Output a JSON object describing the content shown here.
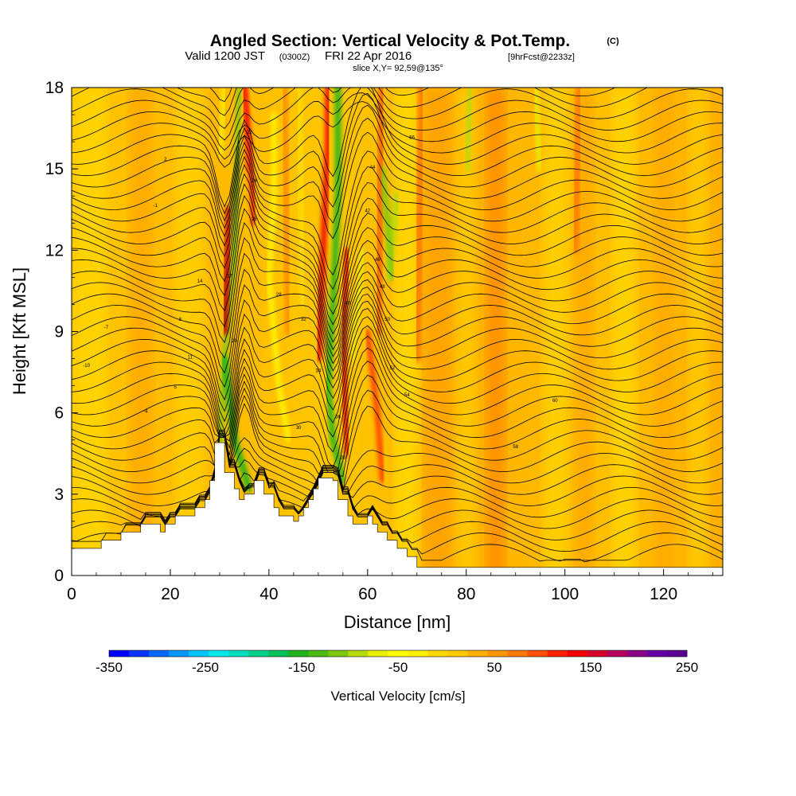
{
  "title": {
    "main": "Angled Section: Vertical Velocity & Pot.Temp.",
    "main_unit": "(C)",
    "valid_prefix": "Valid 1200 JST",
    "valid_utc": "(0300Z)",
    "valid_date": "FRI 22 Apr 2016",
    "forecast": "[9hrFcst@2233z]",
    "slice": "slice X,Y= 92,59@135°"
  },
  "chart_data": {
    "type": "heatmap",
    "xlabel": "Distance [nm]",
    "ylabel": "Height [Kft MSL]",
    "xlim": [
      0,
      132
    ],
    "ylim": [
      0,
      18
    ],
    "xticks": [
      "0",
      "20",
      "40",
      "60",
      "80",
      "100",
      "120"
    ],
    "yticks": [
      "0",
      "3",
      "6",
      "9",
      "12",
      "15",
      "18"
    ],
    "colorbar": {
      "label": "Vertical Velocity [cm/s]",
      "min": -350,
      "max": 250,
      "step": 25,
      "tick_labels": [
        "-350",
        "-250",
        "-150",
        "-50",
        "50",
        "150",
        "250"
      ],
      "colors": [
        "#0000ff",
        "#0b34ff",
        "#0068ff",
        "#0096ff",
        "#00c3ff",
        "#00e7ea",
        "#00dcbe",
        "#00d08c",
        "#00c05a",
        "#1fb41e",
        "#4cba11",
        "#7dc80c",
        "#b4dc0a",
        "#e6f000",
        "#ffff00",
        "#fff000",
        "#ffd700",
        "#ffc800",
        "#ffb000",
        "#ff9600",
        "#ff7800",
        "#ff5000",
        "#ff2000",
        "#f00000",
        "#d2002b",
        "#b4005a",
        "#8c0087",
        "#6400a5",
        "#5a0096"
      ]
    },
    "terrain_kft": [
      [
        0,
        1.0
      ],
      [
        5,
        1.0
      ],
      [
        6,
        1.3
      ],
      [
        9,
        1.3
      ],
      [
        10,
        1.6
      ],
      [
        13,
        1.6
      ],
      [
        14,
        1.9
      ],
      [
        17,
        1.9
      ],
      [
        18,
        1.6
      ],
      [
        19,
        1.9
      ],
      [
        21,
        2.2
      ],
      [
        24,
        2.2
      ],
      [
        25,
        2.5
      ],
      [
        27,
        2.8
      ],
      [
        28,
        3.5
      ],
      [
        29,
        4.9
      ],
      [
        30,
        4.9
      ],
      [
        31,
        3.8
      ],
      [
        33,
        3.2
      ],
      [
        34,
        2.8
      ],
      [
        35,
        3.0
      ],
      [
        37,
        3.5
      ],
      [
        39,
        3.0
      ],
      [
        41,
        2.5
      ],
      [
        42,
        2.2
      ],
      [
        45,
        2.0
      ],
      [
        46,
        2.2
      ],
      [
        47,
        2.5
      ],
      [
        48,
        2.8
      ],
      [
        49,
        3.2
      ],
      [
        50,
        3.6
      ],
      [
        53,
        3.5
      ],
      [
        54,
        2.8
      ],
      [
        56,
        2.2
      ],
      [
        57,
        1.9
      ],
      [
        60,
        2.2
      ],
      [
        61,
        1.9
      ],
      [
        62,
        1.6
      ],
      [
        64,
        1.3
      ],
      [
        66,
        1.0
      ],
      [
        68,
        0.7
      ],
      [
        70,
        0.3
      ],
      [
        132,
        0.3
      ]
    ],
    "series": [
      {
        "x_kft": [
          [
            29,
            32,
            4.5
          ],
          [
            32,
            35,
            3.5
          ]
        ],
        "values": [
          -150
        ]
      },
      {
        "x_kft": [
          [
            31,
            6.0
          ],
          [
            33,
            14.0
          ]
        ],
        "values": [
          180
        ]
      },
      {
        "x_kft": [
          [
            52,
            4.0
          ],
          [
            55,
            6.0
          ]
        ],
        "values": [
          -150
        ]
      },
      {
        "x_kft": [
          [
            51,
            8.0
          ],
          [
            54,
            16.0
          ]
        ],
        "values": [
          150
        ]
      }
    ],
    "contour_labels": [
      "-10",
      "-7",
      "-4",
      "-1",
      "2",
      "5",
      "8",
      "11",
      "14",
      "17",
      "20",
      "22",
      "24",
      "26",
      "28",
      "30",
      "32",
      "34",
      "36",
      "38",
      "40",
      "42",
      "44",
      "46",
      "48",
      "50",
      "52",
      "54",
      "56",
      "58",
      "60"
    ]
  }
}
